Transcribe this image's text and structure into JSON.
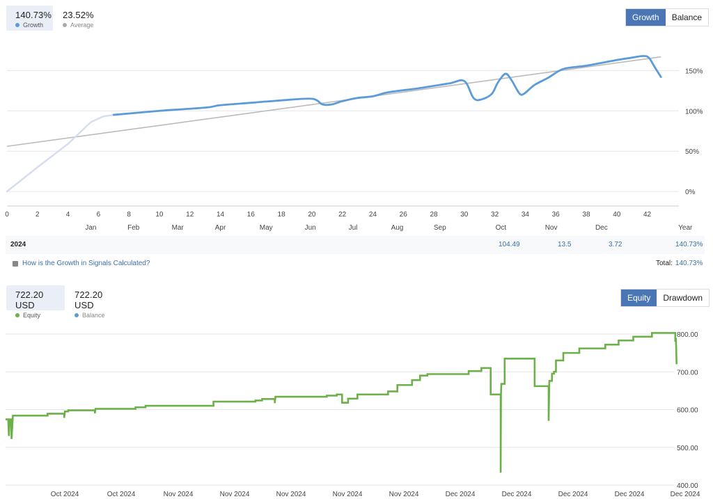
{
  "growth_panel": {
    "stats": [
      {
        "value": "140.73%",
        "label": "Growth",
        "color": "#5b9bd9"
      },
      {
        "value": "23.52%",
        "label": "Average",
        "color": "#aaaaaa"
      }
    ],
    "toggle": [
      "Growth",
      "Balance"
    ],
    "summary": {
      "year": "2024",
      "cells": [
        "104.49",
        "13.5",
        "3.72",
        "140.73%"
      ]
    },
    "help_text": "How is the Growth in Signals Calculated?",
    "total_label": "Total:",
    "total_value": "140.73%"
  },
  "equity_panel": {
    "stats": [
      {
        "value": "722.20 USD",
        "label": "Equity",
        "color": "#6cb04a"
      },
      {
        "value": "722.20 USD",
        "label": "Balance",
        "color": "#5b9bd9"
      }
    ],
    "toggle": [
      "Equity",
      "Drawdown"
    ]
  },
  "chart_data": [
    {
      "type": "line",
      "x_ticks": [
        "0",
        "2",
        "4",
        "6",
        "8",
        "10",
        "12",
        "14",
        "16",
        "18",
        "20",
        "22",
        "24",
        "26",
        "28",
        "30",
        "32",
        "34",
        "36",
        "38",
        "40",
        "42"
      ],
      "x_ticks_values": [
        0,
        2,
        4,
        6,
        8,
        10,
        12,
        14,
        16,
        18,
        20,
        22,
        24,
        26,
        28,
        30,
        32,
        34,
        36,
        38,
        40,
        42
      ],
      "month_labels": [
        "Jan",
        "Feb",
        "Mar",
        "Apr",
        "May",
        "Jun",
        "Jul",
        "Aug",
        "Sep",
        "Oct",
        "Nov",
        "Dec",
        "Year"
      ],
      "month_positions": [
        5.5,
        8.3,
        11.2,
        14.0,
        17.0,
        19.9,
        22.7,
        25.6,
        28.4,
        32.4,
        35.7,
        39.0,
        44.5
      ],
      "y_ticks": [
        "0%",
        "50%",
        "100%",
        "150%"
      ],
      "ylim": [
        -18,
        190
      ],
      "xlim": [
        0,
        43.3
      ],
      "series": [
        {
          "name": "Growth",
          "color": "#5b9bd9",
          "points": [
            [
              0,
              0
            ],
            [
              2,
              30
            ],
            [
              4,
              59
            ],
            [
              5.5,
              86
            ],
            [
              6.3,
              93
            ],
            [
              7,
              95
            ],
            [
              10,
              100
            ],
            [
              13,
              104
            ],
            [
              14,
              107
            ],
            [
              16,
              110
            ],
            [
              18,
              113
            ],
            [
              20,
              115
            ],
            [
              20.7,
              108
            ],
            [
              21.3,
              108
            ],
            [
              22,
              112
            ],
            [
              23,
              116
            ],
            [
              24,
              118
            ],
            [
              25,
              123
            ],
            [
              27,
              128
            ],
            [
              29,
              134
            ],
            [
              30,
              137
            ],
            [
              30.6,
              116
            ],
            [
              31.1,
              114
            ],
            [
              31.8,
              121
            ],
            [
              32.2,
              135
            ],
            [
              32.7,
              146
            ],
            [
              33.1,
              138
            ],
            [
              33.6,
              122
            ],
            [
              33.9,
              121
            ],
            [
              34.6,
              132
            ],
            [
              35.5,
              141
            ],
            [
              36.5,
              152
            ],
            [
              38,
              156
            ],
            [
              40,
              163
            ],
            [
              41,
              166
            ],
            [
              41.7,
              168
            ],
            [
              42.1,
              166
            ],
            [
              42.5,
              154
            ],
            [
              42.9,
              142
            ]
          ]
        },
        {
          "name": "Average",
          "color": "#bbbbbb",
          "points": [
            [
              0,
              56
            ],
            [
              42.9,
              167
            ]
          ]
        }
      ],
      "shaded_until_x": 7
    },
    {
      "type": "line",
      "x_ticks": [
        "Oct 2024",
        "Oct 2024",
        "Nov 2024",
        "Nov 2024",
        "Nov 2024",
        "Nov 2024",
        "Nov 2024",
        "Dec 2024",
        "Dec 2024",
        "Dec 2024",
        "Dec 2024",
        "Dec 2024"
      ],
      "y_ticks": [
        "400.00",
        "500.00",
        "600.00",
        "700.00",
        "800.00"
      ],
      "ylim": [
        400,
        830
      ],
      "xlim": [
        0,
        100
      ],
      "series": [
        {
          "name": "Equity",
          "color": "#6cb04a",
          "points": [
            [
              0,
              574
            ],
            [
              0.4,
              574
            ],
            [
              0.5,
              530
            ],
            [
              0.6,
              574
            ],
            [
              0.8,
              574
            ],
            [
              0.9,
              522
            ],
            [
              1.1,
              584
            ],
            [
              6.3,
              584
            ],
            [
              6.3,
              589
            ],
            [
              8.8,
              589
            ],
            [
              8.8,
              578
            ],
            [
              8.9,
              595
            ],
            [
              9.4,
              595
            ],
            [
              9.4,
              598
            ],
            [
              13.4,
              598
            ],
            [
              13.4,
              590
            ],
            [
              13.5,
              602
            ],
            [
              19.5,
              602
            ],
            [
              19.5,
              606
            ],
            [
              21,
              606
            ],
            [
              21,
              610
            ],
            [
              31.2,
              610
            ],
            [
              31.2,
              621
            ],
            [
              37.5,
              621
            ],
            [
              37.5,
              624
            ],
            [
              38.5,
              624
            ],
            [
              38.5,
              628
            ],
            [
              40.4,
              628
            ],
            [
              40.4,
              617
            ],
            [
              40.5,
              634
            ],
            [
              48.2,
              634
            ],
            [
              48.2,
              637
            ],
            [
              49.7,
              637
            ],
            [
              49.7,
              640
            ],
            [
              50.5,
              640
            ],
            [
              50.5,
              618
            ],
            [
              51.4,
              618
            ],
            [
              51.4,
              629
            ],
            [
              52.8,
              629
            ],
            [
              52.8,
              640
            ],
            [
              57.4,
              640
            ],
            [
              57.4,
              648
            ],
            [
              58.8,
              648
            ],
            [
              58.8,
              665
            ],
            [
              61,
              665
            ],
            [
              61,
              678
            ],
            [
              62.2,
              678
            ],
            [
              62.2,
              690
            ],
            [
              63.3,
              690
            ],
            [
              63.3,
              694
            ],
            [
              69.5,
              694
            ],
            [
              69.5,
              702
            ],
            [
              71.4,
              702
            ],
            [
              71.4,
              710
            ],
            [
              72.8,
              710
            ],
            [
              72.8,
              640
            ],
            [
              74.3,
              640
            ],
            [
              74.3,
              433
            ],
            [
              74.35,
              640
            ],
            [
              74.4,
              668
            ],
            [
              74.9,
              668
            ],
            [
              74.9,
              735
            ],
            [
              79.4,
              735
            ],
            [
              79.4,
              662
            ],
            [
              81.5,
              662
            ],
            [
              81.5,
              570
            ],
            [
              81.6,
              676
            ],
            [
              82,
              676
            ],
            [
              82,
              695
            ],
            [
              82.3,
              695
            ],
            [
              82.3,
              700
            ],
            [
              82.6,
              700
            ],
            [
              82.6,
              730
            ],
            [
              83.7,
              730
            ],
            [
              83.7,
              750
            ],
            [
              86.1,
              750
            ],
            [
              86.1,
              762
            ],
            [
              90,
              762
            ],
            [
              90,
              772
            ],
            [
              92,
              772
            ],
            [
              92,
              783
            ],
            [
              94.2,
              783
            ],
            [
              94.2,
              793
            ],
            [
              97,
              793
            ],
            [
              97,
              803
            ],
            [
              100.5,
              803
            ],
            [
              100.5,
              780
            ],
            [
              100.6,
              790
            ],
            [
              100.7,
              720
            ]
          ]
        }
      ]
    }
  ]
}
